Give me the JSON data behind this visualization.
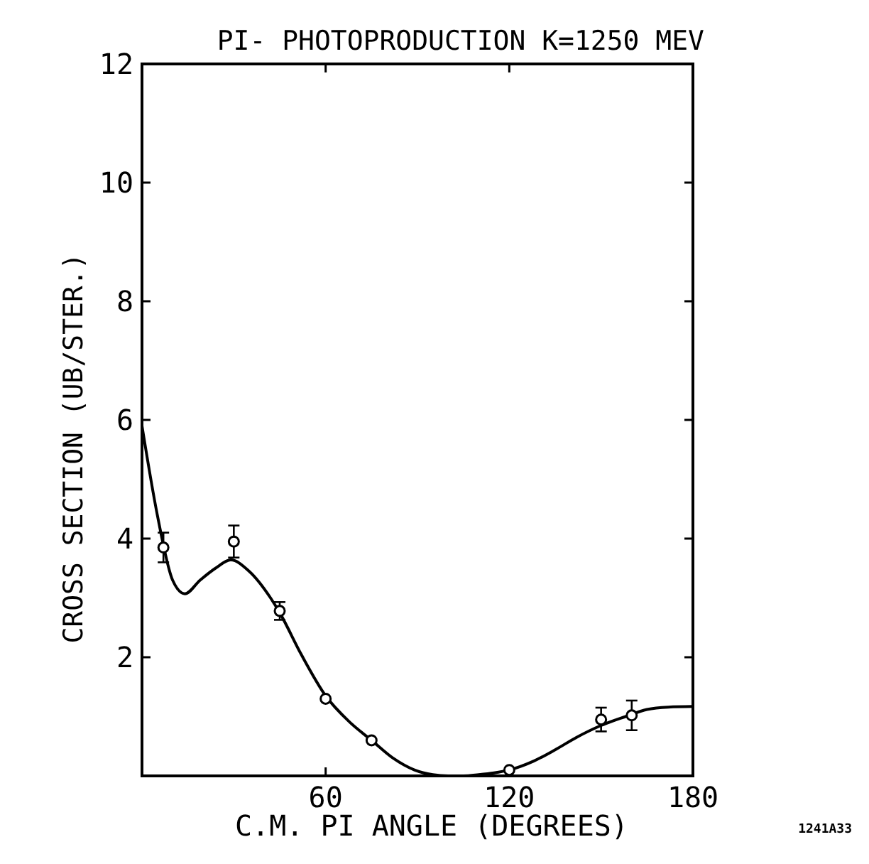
{
  "chart_data": {
    "type": "scatter",
    "title": "PI- PHOTOPRODUCTION K=1250 MEV",
    "xlabel": "C.M. PI ANGLE (DEGREES)",
    "ylabel": "CROSS SECTION (UB/STER.)",
    "annotations": [
      "1241A33"
    ],
    "xlim": [
      0,
      180
    ],
    "xticks": [
      60,
      120,
      180
    ],
    "ylim": [
      0,
      12
    ],
    "yticks": [
      2,
      4,
      6,
      8,
      10,
      12
    ],
    "grid": false,
    "series": [
      {
        "type": "line",
        "color": "#000000",
        "marker": "none",
        "line_style": "solid",
        "x": [
          0,
          5,
          10,
          14,
          19,
          24,
          29,
          35,
          42,
          45,
          52,
          60,
          68,
          75,
          82,
          89,
          95,
          100,
          105,
          110,
          115,
          120,
          128,
          135,
          142,
          150,
          158,
          165,
          172,
          180
        ],
        "values": [
          5.9,
          4.4,
          3.3,
          3.07,
          3.3,
          3.5,
          3.64,
          3.45,
          3.0,
          2.75,
          2.05,
          1.35,
          0.9,
          0.6,
          0.3,
          0.1,
          0.02,
          0.0,
          0.0,
          0.02,
          0.05,
          0.1,
          0.25,
          0.44,
          0.65,
          0.85,
          1.0,
          1.12,
          1.16,
          1.17
        ]
      },
      {
        "color": "#000000",
        "marker": "circle",
        "x": [
          7,
          30,
          45,
          60,
          75,
          120,
          150,
          160
        ],
        "values": [
          3.85,
          3.95,
          2.78,
          1.3,
          0.6,
          0.1,
          0.95,
          1.02
        ],
        "errors": [
          0.25,
          0.27,
          0.15,
          null,
          null,
          null,
          0.2,
          0.25
        ]
      }
    ]
  }
}
